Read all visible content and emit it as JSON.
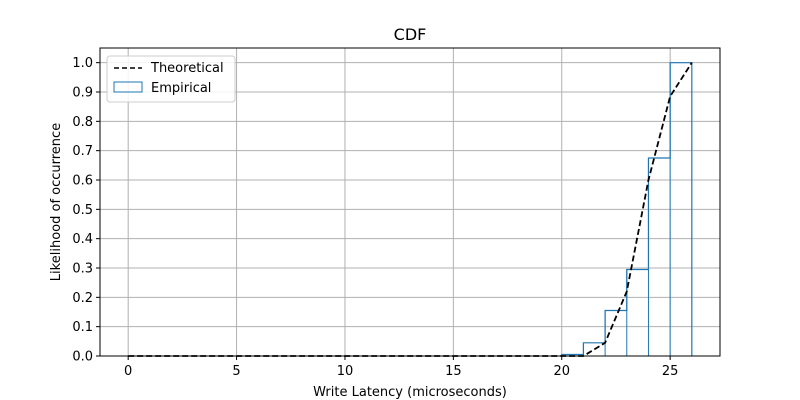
{
  "chart_data": {
    "type": "line",
    "title": "CDF",
    "xlabel": "Write Latency (microseconds)",
    "ylabel": "Likelihood of occurrence",
    "xlim": [
      -1.3,
      27.3
    ],
    "ylim": [
      0.0,
      1.05
    ],
    "xticks": [
      0,
      5,
      10,
      15,
      20,
      25
    ],
    "xtick_labels": [
      "0",
      "5",
      "10",
      "15",
      "20",
      "25"
    ],
    "yticks": [
      0.0,
      0.1,
      0.2,
      0.3,
      0.4,
      0.5,
      0.6,
      0.7,
      0.8,
      0.9,
      1.0
    ],
    "ytick_labels": [
      "0.0",
      "0.1",
      "0.2",
      "0.3",
      "0.4",
      "0.5",
      "0.6",
      "0.7",
      "0.8",
      "0.9",
      "1.0"
    ],
    "grid": true,
    "legend_position": "top-left",
    "series": [
      {
        "name": "Theoretical",
        "style": "dashed-line",
        "color": "#000000",
        "x": [
          0,
          21,
          22,
          23,
          24,
          25,
          26
        ],
        "y": [
          0.0,
          0.0,
          0.045,
          0.22,
          0.6,
          0.885,
          1.0
        ]
      },
      {
        "name": "Empirical",
        "style": "step-histogram",
        "color": "#1f77b4",
        "bin_edges": [
          20,
          21,
          22,
          23,
          24,
          25,
          26
        ],
        "y": [
          0.005,
          0.045,
          0.155,
          0.295,
          0.675,
          1.0
        ]
      }
    ]
  }
}
